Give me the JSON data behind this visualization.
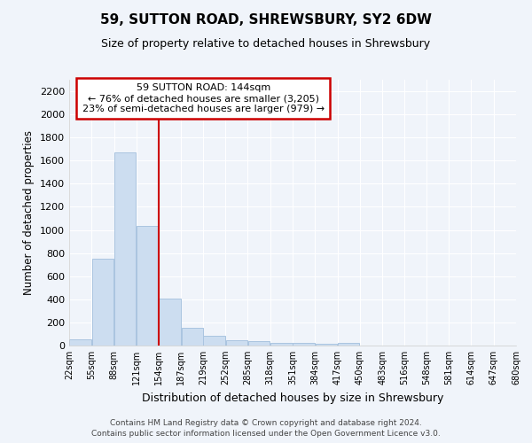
{
  "title": "59, SUTTON ROAD, SHREWSBURY, SY2 6DW",
  "subtitle": "Size of property relative to detached houses in Shrewsbury",
  "xlabel": "Distribution of detached houses by size in Shrewsbury",
  "ylabel": "Number of detached properties",
  "bar_color": "#ccddf0",
  "bar_edge_color": "#aac4e0",
  "bar_left_edges": [
    22,
    55,
    88,
    121,
    154,
    187,
    219,
    252,
    285,
    318,
    351,
    384,
    417,
    450,
    483,
    516,
    548,
    581,
    614,
    647
  ],
  "bar_heights": [
    55,
    748,
    1672,
    1035,
    408,
    152,
    82,
    45,
    35,
    22,
    20,
    13,
    20,
    0,
    0,
    0,
    0,
    0,
    0,
    0
  ],
  "bin_width": 33,
  "x_tick_labels": [
    "22sqm",
    "55sqm",
    "88sqm",
    "121sqm",
    "154sqm",
    "187sqm",
    "219sqm",
    "252sqm",
    "285sqm",
    "318sqm",
    "351sqm",
    "384sqm",
    "417sqm",
    "450sqm",
    "483sqm",
    "516sqm",
    "548sqm",
    "581sqm",
    "614sqm",
    "647sqm",
    "680sqm"
  ],
  "x_tick_positions": [
    22,
    55,
    88,
    121,
    154,
    187,
    219,
    252,
    285,
    318,
    351,
    384,
    417,
    450,
    483,
    516,
    548,
    581,
    614,
    647,
    680
  ],
  "ylim": [
    0,
    2300
  ],
  "xlim": [
    22,
    680
  ],
  "vline_x": 154,
  "vline_color": "#cc0000",
  "annotation_text": "59 SUTTON ROAD: 144sqm\n← 76% of detached houses are smaller (3,205)\n23% of semi-detached houses are larger (979) →",
  "annotation_box_color": "#ffffff",
  "annotation_box_edge_color": "#cc0000",
  "footer_line1": "Contains HM Land Registry data © Crown copyright and database right 2024.",
  "footer_line2": "Contains public sector information licensed under the Open Government Licence v3.0.",
  "background_color": "#f0f4fa",
  "plot_bg_color": "#f0f4fa",
  "grid_color": "#ffffff",
  "yticks": [
    0,
    200,
    400,
    600,
    800,
    1000,
    1200,
    1400,
    1600,
    1800,
    2000,
    2200
  ]
}
